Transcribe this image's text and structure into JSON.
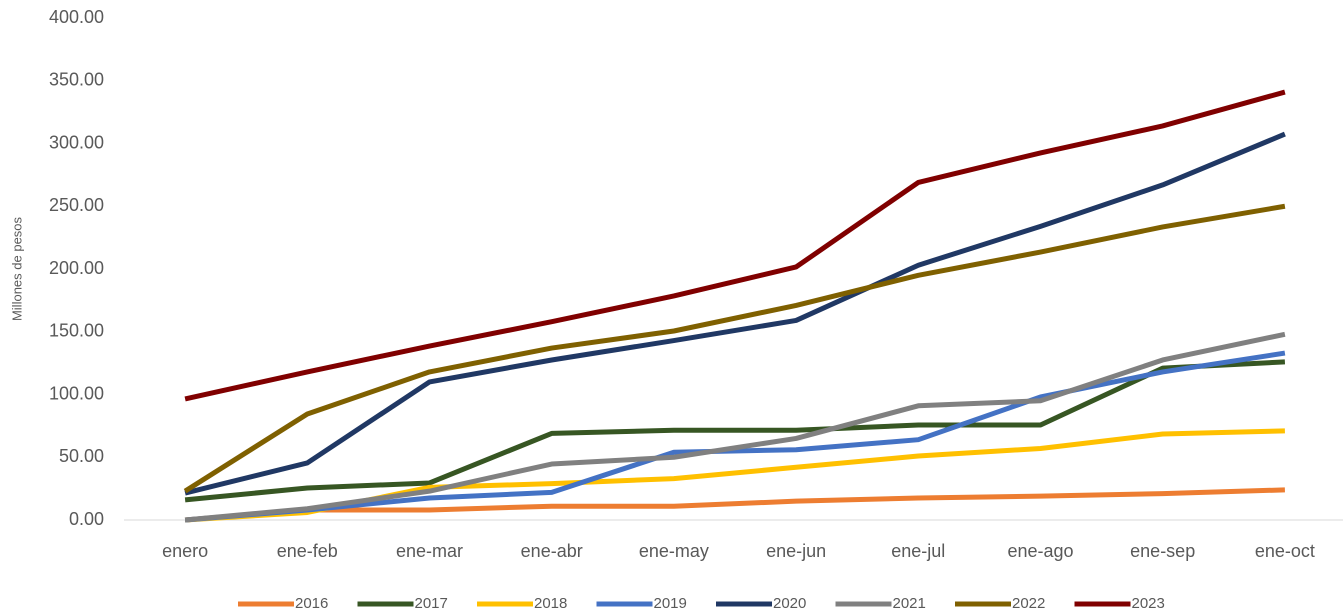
{
  "chart_data": {
    "type": "line",
    "ylabel": "Millones de pesos",
    "categories": [
      "enero",
      "ene-feb",
      "ene-mar",
      "ene-abr",
      "ene-may",
      "ene-jun",
      "ene-jul",
      "ene-ago",
      "ene-sep",
      "ene-oct"
    ],
    "ylim": [
      0,
      400
    ],
    "yticks": [
      {
        "value": 0,
        "label": "0.00"
      },
      {
        "value": 50,
        "label": "50.00"
      },
      {
        "value": 100,
        "label": "100.00"
      },
      {
        "value": 150,
        "label": "150.00"
      },
      {
        "value": 200,
        "label": "200.00"
      },
      {
        "value": 250,
        "label": "250.00"
      },
      {
        "value": 300,
        "label": "300.00"
      },
      {
        "value": 350,
        "label": "350.00"
      },
      {
        "value": 400,
        "label": "400.00"
      }
    ],
    "grid": false,
    "legend": "bottom",
    "series": [
      {
        "name": "2016",
        "color": "#ed7d31",
        "values": [
          0,
          8,
          8,
          11,
          11,
          15,
          17.5,
          19,
          21,
          24
        ]
      },
      {
        "name": "2017",
        "color": "#375623",
        "values": [
          16,
          25.5,
          29.5,
          69,
          71.5,
          71.5,
          75.7,
          75.7,
          121,
          126
        ]
      },
      {
        "name": "2018",
        "color": "#ffc000",
        "values": [
          0,
          6,
          26,
          29,
          33,
          42,
          51,
          57,
          68.5,
          71
        ]
      },
      {
        "name": "2019",
        "color": "#4472c4",
        "values": [
          0,
          8,
          17.5,
          22,
          54,
          56,
          64,
          98,
          118,
          133
        ]
      },
      {
        "name": "2020",
        "color": "#203864",
        "values": [
          21.5,
          45.5,
          110,
          127.5,
          143,
          159,
          203,
          234,
          267,
          307.5
        ]
      },
      {
        "name": "2021",
        "color": "#808080",
        "values": [
          0,
          9,
          23,
          44.6,
          50,
          65,
          91,
          95,
          127.5,
          148
        ]
      },
      {
        "name": "2022",
        "color": "#7f6000",
        "values": [
          23,
          84.5,
          118,
          137,
          150.6,
          171,
          195,
          213.5,
          233.5,
          250
        ]
      },
      {
        "name": "2023",
        "color": "#800000",
        "values": [
          96.5,
          118,
          138.6,
          158,
          178.5,
          201.6,
          269,
          292.5,
          314,
          341
        ]
      }
    ]
  }
}
